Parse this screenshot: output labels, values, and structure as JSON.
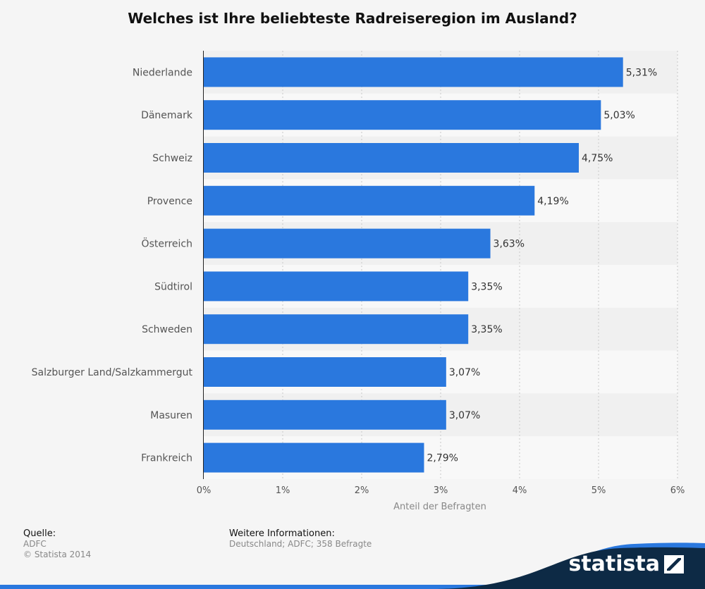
{
  "title": "Welches ist Ihre beliebteste Radreiseregion im Ausland?",
  "chart_data": {
    "type": "bar",
    "orientation": "horizontal",
    "categories": [
      "Niederlande",
      "Dänemark",
      "Schweiz",
      "Provence",
      "Österreich",
      "Südtirol",
      "Schweden",
      "Salzburger Land/Salzkammergut",
      "Masuren",
      "Frankreich"
    ],
    "values": [
      5.31,
      5.03,
      4.75,
      4.19,
      3.63,
      3.35,
      3.35,
      3.07,
      3.07,
      2.79
    ],
    "value_labels": [
      "5,31%",
      "5,03%",
      "4,75%",
      "4,19%",
      "3,63%",
      "3,35%",
      "3,35%",
      "3,07%",
      "3,07%",
      "2,79%"
    ],
    "xticks": [
      "0%",
      "1%",
      "2%",
      "3%",
      "4%",
      "5%",
      "6%"
    ],
    "xlim": [
      0,
      6
    ],
    "xlabel": "Anteil der Befragten",
    "grid": true,
    "bar_color": "#2a78de"
  },
  "footer": {
    "source_heading": "Quelle:",
    "source_name": "ADFC",
    "copyright": "© Statista 2014",
    "info_heading": "Weitere Informationen:",
    "info_text": "Deutschland; ADFC; 358 Befragte"
  },
  "logo": {
    "text": "statista",
    "icon": "statista-logo-icon",
    "wave_color": "#0d2a45",
    "accent_color": "#2a78de"
  }
}
